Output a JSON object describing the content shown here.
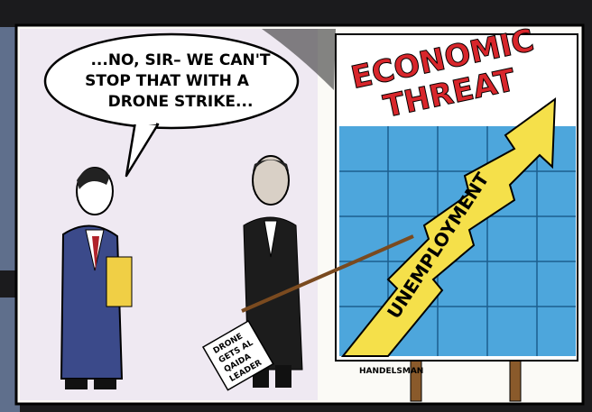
{
  "cartoon": {
    "speech_bubble": {
      "lines": [
        "...NO, SIR– WE CAN'T",
        "STOP THAT WITH A",
        "DRONE STRIKE..."
      ]
    },
    "sign": {
      "title_lines": [
        "ECONOMIC",
        "THREAT"
      ],
      "arrow_label": "UNEMPLOYMENT"
    },
    "newspaper": {
      "lines": [
        "DRONE",
        "GETS AL",
        "QAIDA",
        "LEADER"
      ]
    },
    "signature": "HANDELSMAN"
  }
}
